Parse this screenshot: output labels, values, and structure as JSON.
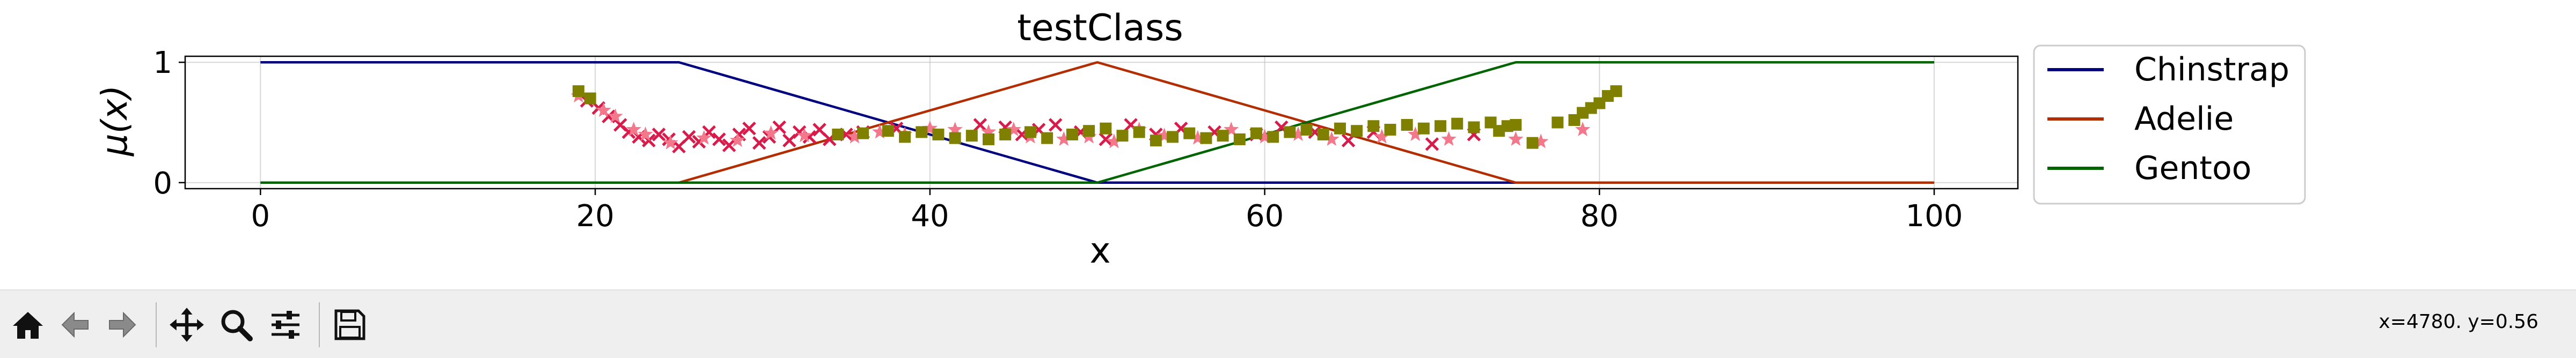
{
  "chart_data": {
    "type": "line",
    "title": "testClass",
    "xlabel": "x",
    "ylabel": "μ(x)",
    "xlim": [
      -4.5,
      105
    ],
    "ylim": [
      -0.05,
      1.05
    ],
    "xticks": [
      "0",
      "20",
      "40",
      "60",
      "80",
      "100"
    ],
    "yticks": [
      "0",
      "1"
    ],
    "grid": true,
    "legend_position": "outside-right",
    "series": [
      {
        "name": "Chinstrap",
        "color": "#00007f",
        "x": [
          0,
          25,
          50,
          75,
          100
        ],
        "y": [
          1,
          1,
          0,
          0,
          0
        ]
      },
      {
        "name": "Adelie",
        "color": "#b22d00",
        "x": [
          0,
          25,
          50,
          75,
          100
        ],
        "y": [
          0,
          0,
          1,
          0,
          0
        ]
      },
      {
        "name": "Gentoo",
        "color": "#006400",
        "x": [
          0,
          25,
          50,
          75,
          100
        ],
        "y": [
          0,
          0,
          0,
          1,
          1
        ]
      }
    ],
    "scatter": [
      {
        "marker": "x",
        "color": "#d81b4a",
        "points": [
          [
            19.5,
            0.68
          ],
          [
            20.2,
            0.62
          ],
          [
            20.8,
            0.55
          ],
          [
            21.5,
            0.48
          ],
          [
            22.0,
            0.42
          ],
          [
            22.6,
            0.38
          ],
          [
            23.2,
            0.35
          ],
          [
            23.8,
            0.4
          ],
          [
            24.4,
            0.36
          ],
          [
            25.0,
            0.3
          ],
          [
            25.6,
            0.38
          ],
          [
            26.2,
            0.34
          ],
          [
            26.8,
            0.42
          ],
          [
            27.4,
            0.36
          ],
          [
            28.0,
            0.31
          ],
          [
            28.6,
            0.4
          ],
          [
            29.2,
            0.45
          ],
          [
            29.8,
            0.33
          ],
          [
            30.4,
            0.38
          ],
          [
            31.0,
            0.46
          ],
          [
            31.6,
            0.35
          ],
          [
            32.2,
            0.42
          ],
          [
            32.8,
            0.38
          ],
          [
            33.4,
            0.44
          ],
          [
            34.0,
            0.36
          ],
          [
            35.0,
            0.4
          ],
          [
            36.0,
            0.42
          ],
          [
            38.0,
            0.45
          ],
          [
            43.0,
            0.48
          ],
          [
            44.5,
            0.46
          ],
          [
            45.5,
            0.4
          ],
          [
            46.5,
            0.44
          ],
          [
            47.5,
            0.48
          ],
          [
            49.0,
            0.42
          ],
          [
            50.5,
            0.36
          ],
          [
            52.0,
            0.48
          ],
          [
            53.5,
            0.4
          ],
          [
            55.0,
            0.45
          ],
          [
            57.0,
            0.42
          ],
          [
            59.5,
            0.4
          ],
          [
            61.0,
            0.46
          ],
          [
            63.0,
            0.42
          ],
          [
            65.0,
            0.35
          ],
          [
            66.5,
            0.42
          ],
          [
            70.0,
            0.32
          ],
          [
            72.5,
            0.4
          ]
        ]
      },
      {
        "marker": "*",
        "color": "#f4788c",
        "points": [
          [
            19.0,
            0.72
          ],
          [
            20.5,
            0.6
          ],
          [
            21.2,
            0.55
          ],
          [
            22.3,
            0.44
          ],
          [
            23.0,
            0.4
          ],
          [
            24.5,
            0.33
          ],
          [
            26.5,
            0.37
          ],
          [
            28.5,
            0.35
          ],
          [
            30.5,
            0.41
          ],
          [
            32.5,
            0.39
          ],
          [
            35.5,
            0.38
          ],
          [
            37.0,
            0.42
          ],
          [
            38.5,
            0.4
          ],
          [
            40.0,
            0.45
          ],
          [
            41.5,
            0.44
          ],
          [
            43.5,
            0.42
          ],
          [
            45.0,
            0.44
          ],
          [
            46.0,
            0.38
          ],
          [
            48.0,
            0.36
          ],
          [
            49.5,
            0.38
          ],
          [
            51.0,
            0.34
          ],
          [
            52.5,
            0.44
          ],
          [
            54.0,
            0.39
          ],
          [
            56.0,
            0.37
          ],
          [
            58.0,
            0.44
          ],
          [
            60.0,
            0.38
          ],
          [
            62.0,
            0.4
          ],
          [
            64.0,
            0.36
          ],
          [
            67.0,
            0.38
          ],
          [
            69.0,
            0.4
          ],
          [
            71.0,
            0.36
          ],
          [
            75.0,
            0.36
          ],
          [
            76.5,
            0.34
          ],
          [
            79.0,
            0.44
          ]
        ]
      },
      {
        "marker": "s",
        "color": "#808000",
        "points": [
          [
            19.0,
            0.76
          ],
          [
            19.7,
            0.7
          ],
          [
            34.5,
            0.4
          ],
          [
            36.0,
            0.41
          ],
          [
            37.5,
            0.43
          ],
          [
            38.5,
            0.38
          ],
          [
            39.5,
            0.42
          ],
          [
            40.5,
            0.4
          ],
          [
            41.5,
            0.37
          ],
          [
            42.5,
            0.39
          ],
          [
            43.5,
            0.36
          ],
          [
            44.5,
            0.4
          ],
          [
            46.0,
            0.42
          ],
          [
            47.0,
            0.37
          ],
          [
            48.5,
            0.4
          ],
          [
            49.5,
            0.43
          ],
          [
            50.5,
            0.45
          ],
          [
            51.5,
            0.39
          ],
          [
            52.5,
            0.42
          ],
          [
            53.5,
            0.35
          ],
          [
            54.5,
            0.38
          ],
          [
            55.5,
            0.41
          ],
          [
            56.5,
            0.37
          ],
          [
            57.5,
            0.39
          ],
          [
            58.5,
            0.36
          ],
          [
            59.5,
            0.41
          ],
          [
            60.5,
            0.38
          ],
          [
            61.5,
            0.42
          ],
          [
            62.5,
            0.44
          ],
          [
            63.5,
            0.4
          ],
          [
            64.5,
            0.45
          ],
          [
            65.5,
            0.43
          ],
          [
            66.5,
            0.47
          ],
          [
            67.5,
            0.44
          ],
          [
            68.5,
            0.48
          ],
          [
            69.5,
            0.45
          ],
          [
            70.5,
            0.47
          ],
          [
            71.5,
            0.49
          ],
          [
            72.5,
            0.46
          ],
          [
            73.5,
            0.5
          ],
          [
            74.0,
            0.43
          ],
          [
            74.5,
            0.47
          ],
          [
            75.0,
            0.48
          ],
          [
            76.0,
            0.33
          ],
          [
            77.5,
            0.5
          ],
          [
            78.5,
            0.52
          ],
          [
            79.0,
            0.58
          ],
          [
            79.5,
            0.62
          ],
          [
            80.0,
            0.66
          ],
          [
            80.5,
            0.72
          ],
          [
            81.0,
            0.76
          ]
        ]
      }
    ]
  },
  "toolbar": {
    "buttons": [
      {
        "name": "home-button",
        "icon": "home-icon"
      },
      {
        "name": "back-button",
        "icon": "arrow-left-icon"
      },
      {
        "name": "forward-button",
        "icon": "arrow-right-icon"
      },
      {
        "name": "pan-button",
        "icon": "move-icon"
      },
      {
        "name": "zoom-button",
        "icon": "magnifier-icon"
      },
      {
        "name": "configure-subplots-button",
        "icon": "sliders-icon"
      },
      {
        "name": "save-button",
        "icon": "floppy-disk-icon"
      }
    ],
    "coordinates": "x=4780. y=0.56"
  }
}
